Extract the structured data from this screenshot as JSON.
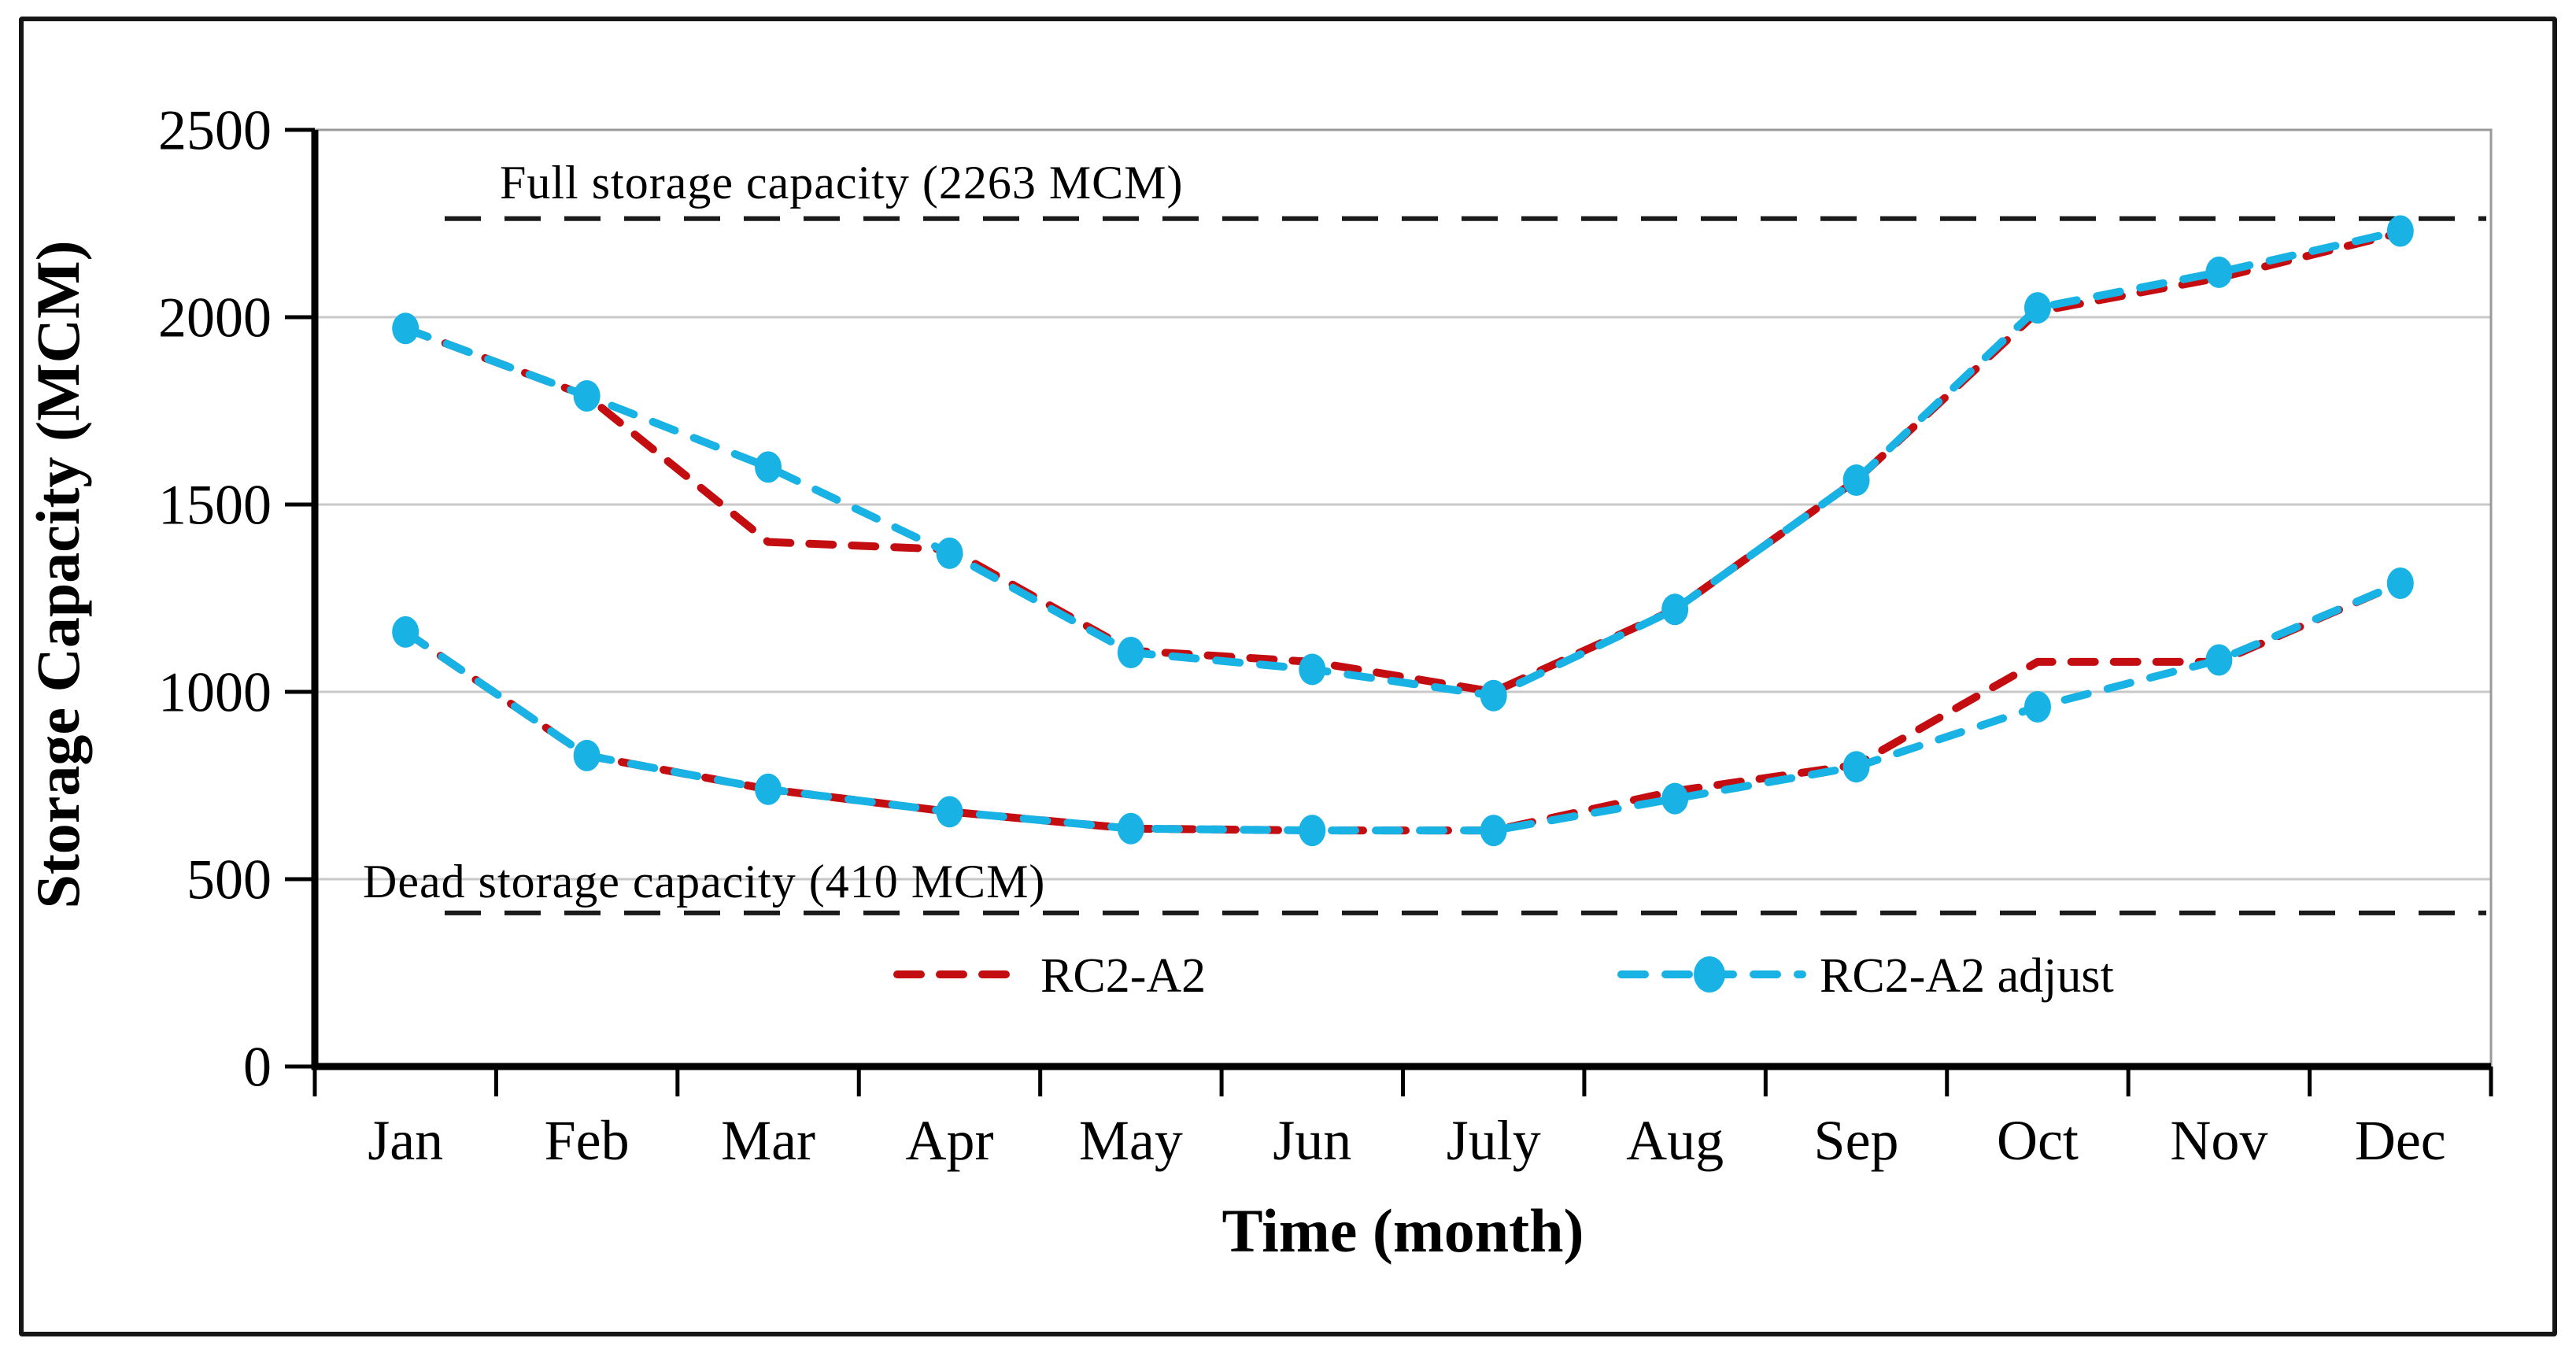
{
  "figure": {
    "background": "#ffffff",
    "border_color": "#161616"
  },
  "chart_data": {
    "type": "line",
    "title": "",
    "xlabel": "Time (month)",
    "ylabel": "Storage Capacity (MCM)",
    "categories": [
      "Jan",
      "Feb",
      "Mar",
      "Apr",
      "May",
      "Jun",
      "July",
      "Aug",
      "Sep",
      "Oct",
      "Nov",
      "Dec"
    ],
    "y_ticks": [
      0,
      500,
      1000,
      1500,
      2000,
      2500
    ],
    "ylim": [
      0,
      2500
    ],
    "grid": "horizontal",
    "grid_color": "#c8c8c8",
    "reference_lines": [
      {
        "label": "Full storage capacity (2263 MCM)",
        "value": 2263,
        "color": "#1a1a1a",
        "style": "dashed"
      },
      {
        "label": "Dead storage capacity (410 MCM)",
        "value": 410,
        "color": "#1a1a1a",
        "style": "dashed"
      }
    ],
    "series": [
      {
        "name": "RC2-A2",
        "color": "#c40d10",
        "line_style": "dashed",
        "marker": "none",
        "upper": [
          1970,
          1790,
          1400,
          1380,
          1110,
          1080,
          1000,
          1220,
          1565,
          2015,
          2105,
          2225
        ],
        "lower": [
          1160,
          830,
          740,
          680,
          635,
          630,
          630,
          735,
          805,
          1080,
          1080,
          1290
        ]
      },
      {
        "name": "RC2-A2 adjust",
        "color": "#18b2e4",
        "line_style": "dashed",
        "marker": "circle",
        "upper": [
          1970,
          1790,
          1600,
          1370,
          1105,
          1060,
          990,
          1220,
          1565,
          2025,
          2120,
          2230
        ],
        "lower": [
          1160,
          830,
          740,
          680,
          635,
          630,
          630,
          715,
          800,
          960,
          1085,
          1290
        ]
      }
    ],
    "legend": [
      "RC2-A2",
      "RC2-A2 adjust"
    ],
    "legend_position": "inside-bottom-center"
  }
}
